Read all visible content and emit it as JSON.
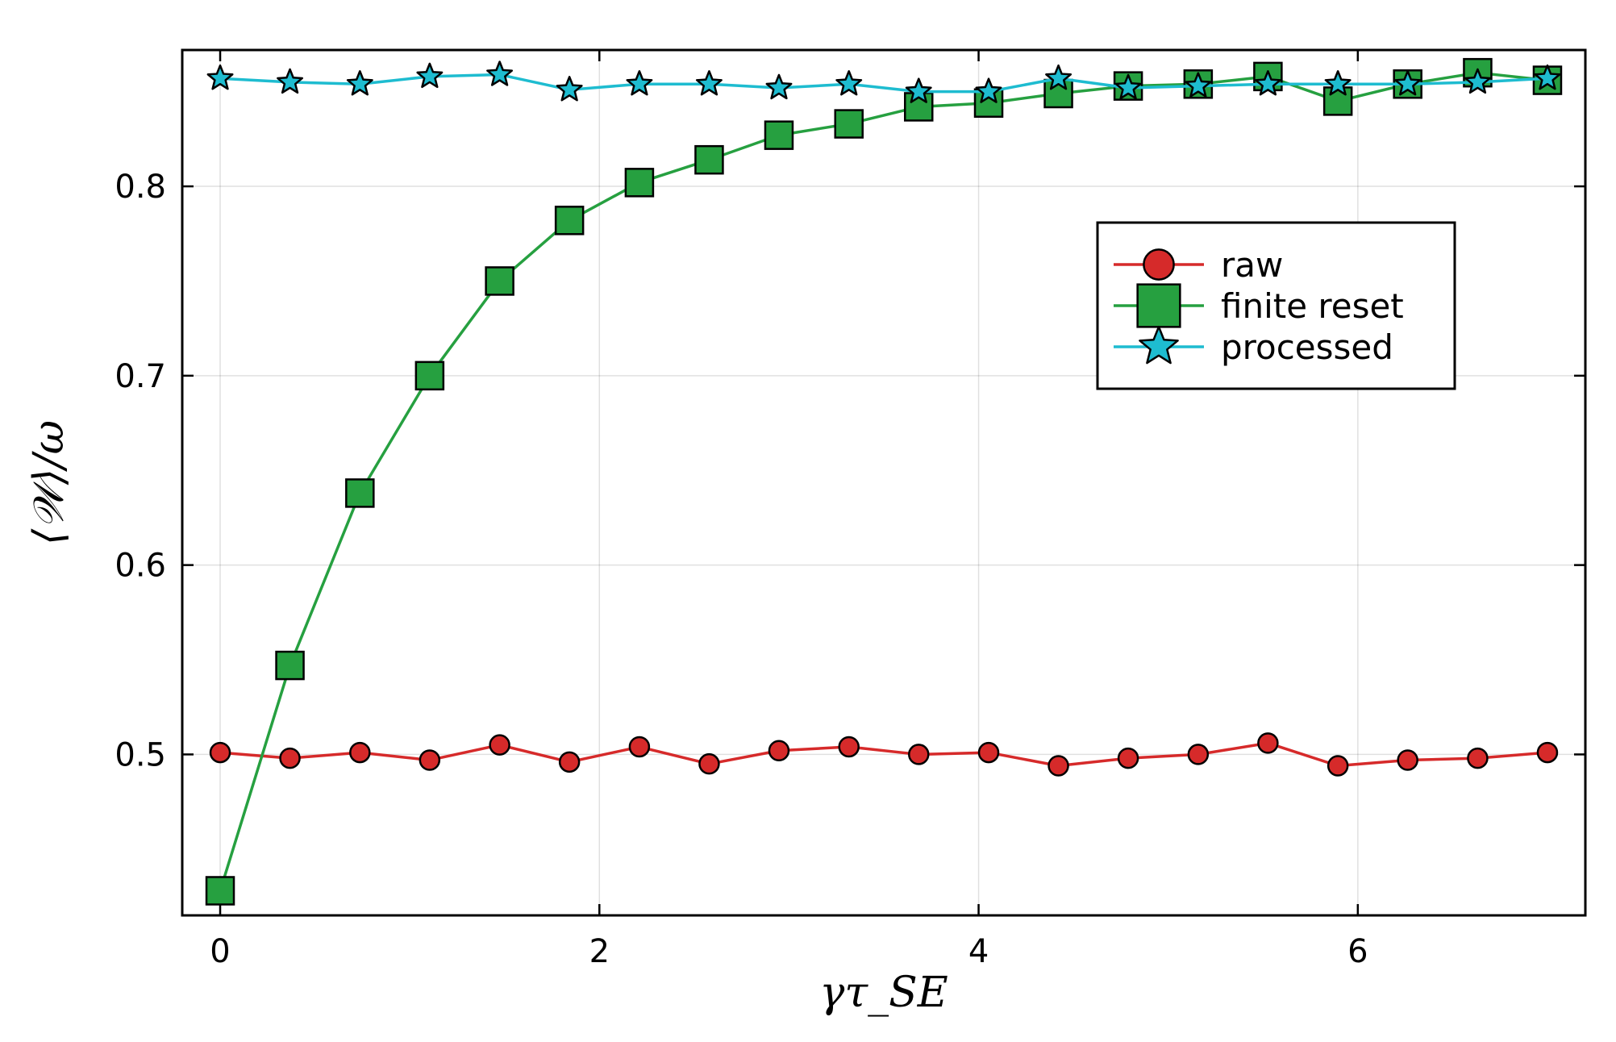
{
  "chart_data": {
    "type": "line",
    "title": "",
    "xlabel": "γτ_SE",
    "ylabel": "⟨𝒲⟩/ω",
    "xlim": [
      -0.2,
      7.2
    ],
    "ylim": [
      0.415,
      0.872
    ],
    "grid": true,
    "legend_position": "top-right",
    "xticks": [
      0,
      2,
      4,
      6
    ],
    "yticks": [
      0.5,
      0.6,
      0.7,
      0.8
    ],
    "xtick_labels": [
      "0",
      "2",
      "4",
      "6"
    ],
    "ytick_labels": [
      "0.5",
      "0.6",
      "0.7",
      "0.8"
    ],
    "x": [
      0.0,
      0.368,
      0.737,
      1.105,
      1.474,
      1.842,
      2.211,
      2.579,
      2.947,
      3.316,
      3.684,
      4.053,
      4.421,
      4.789,
      5.158,
      5.526,
      5.895,
      6.263,
      6.632,
      7.0
    ],
    "series": [
      {
        "name": "raw",
        "marker": "circle",
        "color": "#d62a2a",
        "values": [
          0.501,
          0.498,
          0.501,
          0.497,
          0.505,
          0.496,
          0.504,
          0.495,
          0.502,
          0.504,
          0.5,
          0.501,
          0.494,
          0.498,
          0.5,
          0.506,
          0.494,
          0.497,
          0.498,
          0.501
        ]
      },
      {
        "name": "finite reset",
        "marker": "square",
        "color": "#26a040",
        "values": [
          0.428,
          0.547,
          0.638,
          0.7,
          0.75,
          0.782,
          0.802,
          0.814,
          0.827,
          0.833,
          0.842,
          0.844,
          0.849,
          0.853,
          0.854,
          0.858,
          0.845,
          0.854,
          0.86,
          0.856
        ]
      },
      {
        "name": "processed",
        "marker": "star",
        "color": "#1ebcd0",
        "values": [
          0.857,
          0.855,
          0.854,
          0.858,
          0.859,
          0.851,
          0.854,
          0.854,
          0.852,
          0.854,
          0.85,
          0.85,
          0.857,
          0.852,
          0.853,
          0.854,
          0.854,
          0.854,
          0.855,
          0.857
        ]
      }
    ]
  }
}
